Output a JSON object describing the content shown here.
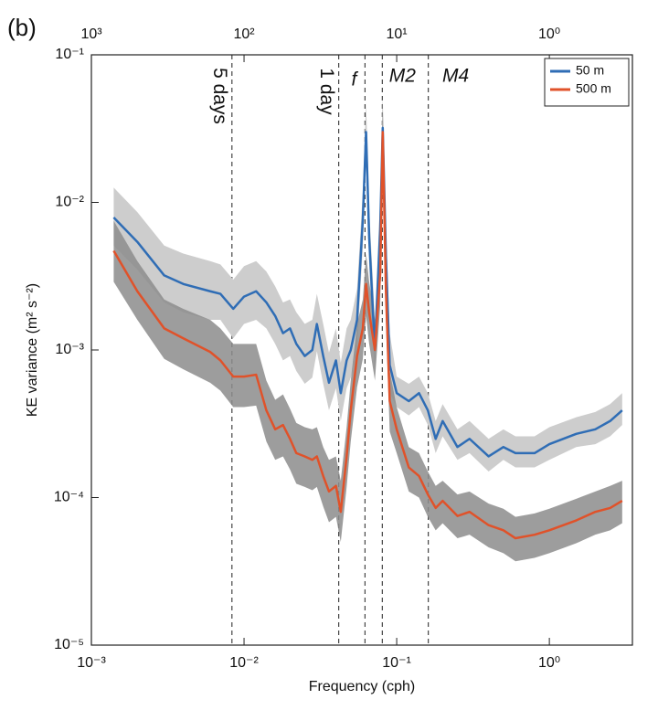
{
  "chart_data": {
    "type": "line",
    "panel_label": "(b)",
    "xlabel": "Frequency (cph)",
    "ylabel": "KE variance (m² s⁻²)",
    "xscale": "log",
    "yscale": "log",
    "xlim": [
      0.001,
      3.5
    ],
    "ylim": [
      1e-05,
      0.1
    ],
    "xticks": [
      {
        "value": 0.001,
        "label": "10⁻³"
      },
      {
        "value": 0.01,
        "label": "10⁻²"
      },
      {
        "value": 0.1,
        "label": "10⁻¹"
      },
      {
        "value": 1,
        "label": "10⁰"
      }
    ],
    "yticks": [
      {
        "value": 1e-05,
        "label": "10⁻⁵"
      },
      {
        "value": 0.0001,
        "label": "10⁻⁴"
      },
      {
        "value": 0.001,
        "label": "10⁻³"
      },
      {
        "value": 0.01,
        "label": "10⁻²"
      },
      {
        "value": 0.1,
        "label": "10⁻¹"
      }
    ],
    "x2lim": [
      1000,
      0.2857
    ],
    "x2ticks": [
      {
        "value": 1000,
        "label": "10³"
      },
      {
        "value": 100,
        "label": "10²"
      },
      {
        "value": 10,
        "label": "10¹"
      },
      {
        "value": 1,
        "label": "10⁰"
      }
    ],
    "legend": "upper right",
    "annotations": [
      {
        "x": 0.00833,
        "label": "5 days"
      },
      {
        "x": 0.0417,
        "label": "1 day"
      },
      {
        "x": 0.062,
        "label": "f"
      },
      {
        "x": 0.0805,
        "label": "M2"
      },
      {
        "x": 0.161,
        "label": "M4"
      }
    ],
    "x": [
      0.0014,
      0.002,
      0.003,
      0.004,
      0.006,
      0.007,
      0.0085,
      0.01,
      0.012,
      0.014,
      0.016,
      0.018,
      0.02,
      0.022,
      0.025,
      0.028,
      0.03,
      0.033,
      0.036,
      0.04,
      0.043,
      0.047,
      0.05,
      0.055,
      0.06,
      0.063,
      0.066,
      0.072,
      0.078,
      0.081,
      0.085,
      0.09,
      0.1,
      0.12,
      0.14,
      0.16,
      0.18,
      0.2,
      0.25,
      0.3,
      0.4,
      0.5,
      0.6,
      0.8,
      1.0,
      1.5,
      2.0,
      2.5,
      3.0
    ],
    "series": [
      {
        "name": "50 m",
        "color": "#2f6db5",
        "band_color": "#cdcdcd",
        "values": [
          0.0079,
          0.0054,
          0.0032,
          0.0028,
          0.0025,
          0.0024,
          0.0019,
          0.0023,
          0.0025,
          0.0021,
          0.0017,
          0.0013,
          0.0014,
          0.0011,
          0.00091,
          0.001,
          0.0015,
          0.00091,
          0.0006,
          0.00085,
          0.00051,
          0.00085,
          0.001,
          0.0016,
          0.0077,
          0.03,
          0.0058,
          0.001,
          0.0067,
          0.032,
          0.0043,
          0.00079,
          0.00051,
          0.00045,
          0.00051,
          0.00039,
          0.00025,
          0.00033,
          0.00022,
          0.00025,
          0.00019,
          0.00022,
          0.0002,
          0.0002,
          0.00023,
          0.00027,
          0.00029,
          0.00033,
          0.00039
        ],
        "upper": [
          0.0126,
          0.0086,
          0.0051,
          0.0045,
          0.004,
          0.0038,
          0.003,
          0.0037,
          0.004,
          0.0034,
          0.0027,
          0.0021,
          0.0022,
          0.0018,
          0.0015,
          0.0016,
          0.0024,
          0.0015,
          0.00096,
          0.0014,
          0.00082,
          0.0014,
          0.0016,
          0.0026,
          0.012,
          0.048,
          0.0093,
          0.0016,
          0.011,
          0.051,
          0.0069,
          0.0013,
          0.00066,
          0.00059,
          0.00066,
          0.00051,
          0.00033,
          0.00043,
          0.00029,
          0.00033,
          0.00025,
          0.00029,
          0.00026,
          0.00026,
          0.0003,
          0.00035,
          0.00038,
          0.00043,
          0.00051
        ],
        "lower": [
          0.0051,
          0.0035,
          0.0021,
          0.0018,
          0.0016,
          0.0016,
          0.0012,
          0.0015,
          0.0016,
          0.0014,
          0.0011,
          0.00085,
          0.00091,
          0.00072,
          0.00059,
          0.00065,
          0.00098,
          0.00059,
          0.00039,
          0.00055,
          0.00033,
          0.00055,
          0.00065,
          0.001,
          0.005,
          0.0195,
          0.0038,
          0.00065,
          0.0044,
          0.021,
          0.0028,
          0.00051,
          0.00041,
          0.00036,
          0.00041,
          0.00031,
          0.0002,
          0.00026,
          0.00018,
          0.0002,
          0.00015,
          0.00018,
          0.00016,
          0.00016,
          0.00018,
          0.00022,
          0.00023,
          0.00026,
          0.00031
        ]
      },
      {
        "name": "500 m",
        "color": "#e0522a",
        "band_color": "#8c8c8c",
        "values": [
          0.0047,
          0.0025,
          0.0014,
          0.0012,
          0.00097,
          0.00085,
          0.00066,
          0.00066,
          0.00068,
          0.00039,
          0.00029,
          0.00031,
          0.00025,
          0.0002,
          0.00019,
          0.00018,
          0.00019,
          0.00014,
          0.00011,
          0.00012,
          8e-05,
          0.00019,
          0.00039,
          0.00091,
          0.0014,
          0.0028,
          0.0018,
          0.001,
          0.0033,
          0.03,
          0.0025,
          0.00045,
          0.00029,
          0.00016,
          0.00014,
          0.000105,
          8.5e-05,
          9.5e-05,
          7.5e-05,
          8e-05,
          6.5e-05,
          6e-05,
          5.3e-05,
          5.6e-05,
          6e-05,
          7e-05,
          8e-05,
          8.5e-05,
          9.5e-05
        ],
        "upper": [
          0.0075,
          0.004,
          0.0022,
          0.0019,
          0.0016,
          0.0014,
          0.0011,
          0.0011,
          0.0011,
          0.00062,
          0.00046,
          0.0005,
          0.0004,
          0.00032,
          0.0003,
          0.00029,
          0.0003,
          0.00022,
          0.00018,
          0.00019,
          0.00013,
          0.0003,
          0.00062,
          0.0015,
          0.0022,
          0.0045,
          0.0029,
          0.0016,
          0.0053,
          0.048,
          0.004,
          0.00072,
          0.00041,
          0.00022,
          0.0002,
          0.00015,
          0.00012,
          0.00013,
          0.000105,
          0.00011,
          9.1e-05,
          8.4e-05,
          7.4e-05,
          7.8e-05,
          8.4e-05,
          9.8e-05,
          0.00011,
          0.00012,
          0.00013
        ],
        "lower": [
          0.0029,
          0.0016,
          0.00087,
          0.00074,
          0.0006,
          0.00053,
          0.00041,
          0.00041,
          0.00042,
          0.00024,
          0.00018,
          0.00019,
          0.000155,
          0.000124,
          0.000118,
          0.000112,
          0.000118,
          8.7e-05,
          6.8e-05,
          7.4e-05,
          5e-05,
          0.000118,
          0.00024,
          0.00056,
          0.00087,
          0.0017,
          0.0011,
          0.00062,
          0.002,
          0.0186,
          0.0016,
          0.00028,
          0.0002,
          0.00011,
          0.0001,
          7.4e-05,
          6e-05,
          6.7e-05,
          5.3e-05,
          5.6e-05,
          4.6e-05,
          4.2e-05,
          3.7e-05,
          3.9e-05,
          4.2e-05,
          4.9e-05,
          5.6e-05,
          6e-05,
          6.7e-05
        ]
      }
    ]
  }
}
